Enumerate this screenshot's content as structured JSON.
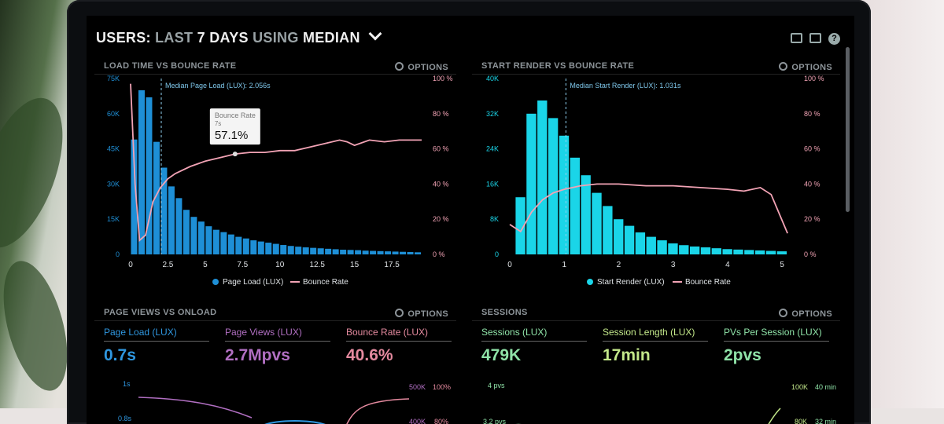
{
  "title": {
    "bold1": "USERS:",
    "dim1": "LAST",
    "bold2": "7 DAYS",
    "dim2": "USING",
    "bold3": "MEDIAN"
  },
  "options_label": "OPTIONS",
  "colors": {
    "bar_blue": "#1e8fd6",
    "bar_cyan": "#1ad5e8",
    "bounce_pink": "#f2a3b5",
    "green": "#8fe3a8",
    "page_blue": "#2f97e0",
    "purple": "#b16fc2",
    "rose": "#e58a9f"
  },
  "icons": [
    "monitor-icon",
    "share-icon",
    "help-icon",
    "gear-icon",
    "chevron-down-icon"
  ],
  "help_glyph": "?",
  "chart_data": [
    {
      "type": "bar",
      "title": "LOAD TIME VS BOUNCE RATE",
      "annotation": "Median Page Load (LUX): 2.056s",
      "annotation_x": 2.056,
      "x_ticks": [
        "0",
        "2.5",
        "5",
        "7.5",
        "10",
        "12.5",
        "15",
        "17.5"
      ],
      "y_left_ticks": [
        "0",
        "15K",
        "30K",
        "45K",
        "60K",
        "75K"
      ],
      "y_right_ticks": [
        "0 %",
        "20 %",
        "40 %",
        "60 %",
        "80 %",
        "100 %"
      ],
      "ylim": [
        0,
        75000
      ],
      "bar_width": 0.5,
      "bars_x": [
        0,
        0.5,
        1,
        1.5,
        2,
        2.5,
        3,
        3.5,
        4,
        4.5,
        5,
        5.5,
        6,
        6.5,
        7,
        7.5,
        8,
        8.5,
        9,
        9.5,
        10,
        10.5,
        11,
        11.5,
        12,
        12.5,
        13,
        13.5,
        14,
        14.5,
        15,
        15.5,
        16,
        16.5,
        17,
        17.5,
        18,
        18.5,
        19
      ],
      "bars_y": [
        49000,
        70000,
        67000,
        48000,
        37000,
        29000,
        24000,
        19000,
        16000,
        14000,
        12000,
        10500,
        9500,
        8500,
        7500,
        6800,
        6000,
        5500,
        5000,
        4500,
        4000,
        3600,
        3300,
        3000,
        2800,
        2600,
        2400,
        2200,
        2000,
        1900,
        1800,
        1600,
        1500,
        1400,
        1300,
        1200,
        1100,
        1000,
        900
      ],
      "line_x": [
        0,
        0.3,
        0.6,
        1,
        1.5,
        2,
        2.5,
        3,
        4,
        5,
        6,
        7,
        8,
        9,
        10,
        11,
        12,
        13,
        14,
        14.5,
        15,
        16,
        17,
        18,
        19.5
      ],
      "line_y": [
        97,
        40,
        8,
        11,
        30,
        38,
        43,
        46,
        50,
        53,
        55,
        57.1,
        58,
        58,
        59,
        59,
        61,
        63,
        65,
        64,
        62,
        65,
        64,
        65,
        65
      ],
      "tooltip": {
        "label": "Bounce Rate",
        "sub": "7s",
        "value": "57.1%",
        "x": 7,
        "y": 57.1
      },
      "legend": [
        "Page Load (LUX)",
        "Bounce Rate"
      ],
      "legend_placement": "bottom-center"
    },
    {
      "type": "bar",
      "title": "START RENDER VS BOUNCE RATE",
      "annotation": "Median Start Render (LUX): 1.031s",
      "annotation_x": 1.031,
      "x_ticks": [
        "0",
        "1",
        "2",
        "3",
        "4",
        "5"
      ],
      "y_left_ticks": [
        "0",
        "8K",
        "16K",
        "24K",
        "32K",
        "40K"
      ],
      "y_right_ticks": [
        "0 %",
        "20 %",
        "40 %",
        "60 %",
        "80 %",
        "100 %"
      ],
      "ylim": [
        0,
        40000
      ],
      "bar_width": 0.2,
      "bars_x": [
        0.1,
        0.3,
        0.5,
        0.7,
        0.9,
        1.1,
        1.3,
        1.5,
        1.7,
        1.9,
        2.1,
        2.3,
        2.5,
        2.7,
        2.9,
        3.1,
        3.3,
        3.5,
        3.7,
        3.9,
        4.1,
        4.3,
        4.5,
        4.7,
        4.9
      ],
      "bars_y": [
        13000,
        32000,
        35000,
        31000,
        27000,
        22000,
        18000,
        14000,
        11000,
        8000,
        6500,
        5000,
        4000,
        3200,
        2500,
        2100,
        1800,
        1600,
        1400,
        1200,
        1100,
        1000,
        900,
        800,
        700
      ],
      "line_x": [
        0,
        0.2,
        0.4,
        0.6,
        0.8,
        1,
        1.3,
        1.6,
        2,
        2.5,
        3,
        3.5,
        4,
        4.3,
        4.6,
        4.8,
        5.1
      ],
      "line_y": [
        17,
        13,
        24,
        31,
        35,
        37,
        39,
        40,
        40,
        39,
        39,
        38,
        37,
        36,
        38,
        34,
        12
      ],
      "legend": [
        "Start Render (LUX)",
        "Bounce Rate"
      ],
      "legend_placement": "bottom-center"
    }
  ],
  "page_views": {
    "title": "PAGE VIEWS VS ONLOAD",
    "kpis": [
      {
        "label": "Page Load (LUX)",
        "value": "0.7s",
        "color": "#2f97e0"
      },
      {
        "label": "Page Views (LUX)",
        "value": "2.7Mpvs",
        "color": "#b16fc2"
      },
      {
        "label": "Bounce Rate (LUX)",
        "value": "40.6%",
        "color": "#e58a9f"
      }
    ],
    "y_left_ticks": [
      "1s",
      "0.8s"
    ],
    "y_mid_ticks": [
      "500K",
      "400K"
    ],
    "y_right_ticks": [
      "100%",
      "80%"
    ]
  },
  "sessions": {
    "title": "SESSIONS",
    "kpis": [
      {
        "label": "Sessions (LUX)",
        "value": "479K",
        "color": "#8fe3a8"
      },
      {
        "label": "Session Length (LUX)",
        "value": "17min",
        "color": "#c3e88a"
      },
      {
        "label": "PVs Per Session (LUX)",
        "value": "2pvs",
        "color": "#8fe3a8"
      }
    ],
    "y_left_ticks": [
      "4 pvs",
      "3.2 pvs"
    ],
    "y_right_ticks_a": [
      "100K",
      "80K"
    ],
    "y_right_ticks_b": [
      "40 min",
      "32 min"
    ]
  }
}
